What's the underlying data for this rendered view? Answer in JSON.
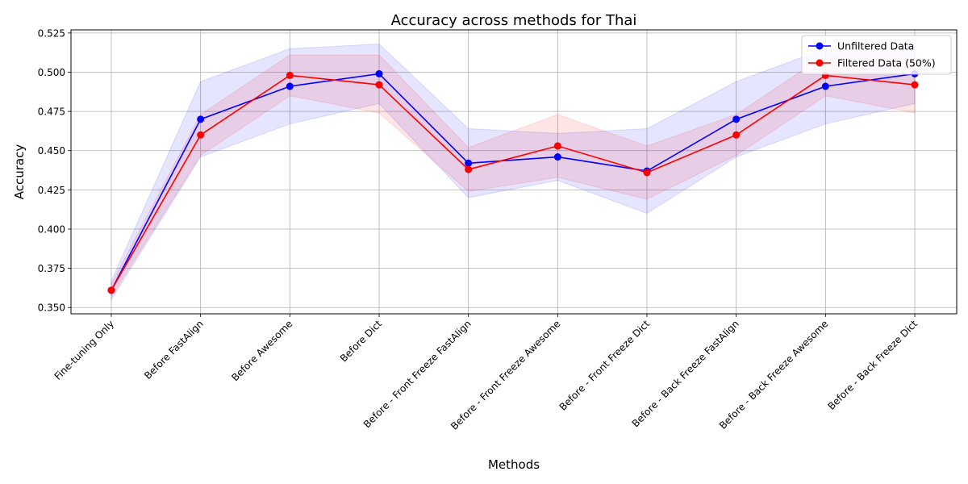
{
  "chart_data": {
    "type": "line",
    "title": "Accuracy across methods for Thai",
    "xlabel": "Methods",
    "ylabel": "Accuracy",
    "categories": [
      "Fine-tuning Only",
      "Before FastAlign",
      "Before Awesome",
      "Before Dict",
      "Before - Front Freeze FastAlign",
      "Before - Front Freeze Awesome",
      "Before - Front Freeze Dict",
      "Before - Back Freeze FastAlign",
      "Before - Back Freeze Awesome",
      "Before - Back Freeze Dict"
    ],
    "ylim": [
      0.346,
      0.527
    ],
    "yticks": [
      0.35,
      0.375,
      0.4,
      0.425,
      0.45,
      0.475,
      0.5,
      0.525
    ],
    "ytick_labels": [
      "0.350",
      "0.375",
      "0.400",
      "0.425",
      "0.450",
      "0.475",
      "0.500",
      "0.525"
    ],
    "grid": true,
    "legend_position": "top-right",
    "series": [
      {
        "name": "Unfiltered Data",
        "color": "#0000ff",
        "marker": "circle",
        "values": [
          0.361,
          0.47,
          0.491,
          0.499,
          0.442,
          0.446,
          0.437,
          0.47,
          0.491,
          0.499
        ],
        "band_lower": [
          0.355,
          0.446,
          0.467,
          0.48,
          0.42,
          0.431,
          0.41,
          0.446,
          0.467,
          0.48
        ],
        "band_upper": [
          0.367,
          0.494,
          0.515,
          0.518,
          0.464,
          0.461,
          0.464,
          0.494,
          0.515,
          0.518
        ],
        "band_color": "#0000ff"
      },
      {
        "name": "Filtered Data (50%)",
        "color": "#ff0000",
        "marker": "circle",
        "values": [
          0.361,
          0.46,
          0.498,
          0.492,
          0.438,
          0.453,
          0.436,
          0.46,
          0.498,
          0.492
        ],
        "band_lower": [
          0.357,
          0.447,
          0.485,
          0.474,
          0.424,
          0.433,
          0.419,
          0.447,
          0.485,
          0.474
        ],
        "band_upper": [
          0.365,
          0.473,
          0.511,
          0.511,
          0.452,
          0.473,
          0.453,
          0.473,
          0.511,
          0.511
        ],
        "band_color": "#ff0000"
      }
    ]
  }
}
